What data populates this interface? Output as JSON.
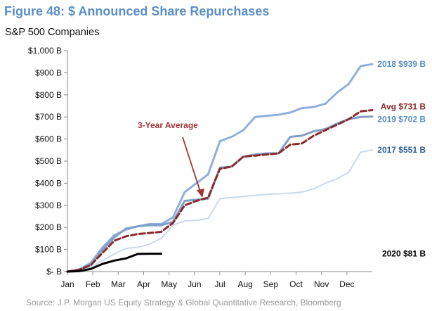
{
  "title": "Figure 48: $ Announced Share Repurchases",
  "subtitle": "S&P 500 Companies",
  "source": "Source: J.P. Morgan US Equity Strategy & Global Quantitative Research, Bloomberg",
  "chart_data": {
    "type": "line",
    "unit": "$B",
    "x_ticks": [
      "Jan",
      "Feb",
      "Mar",
      "Apr",
      "May",
      "Jun",
      "Jul",
      "Aug",
      "Sep",
      "Oct",
      "Nov",
      "Dec"
    ],
    "y_ticks": [
      "$- B",
      "$100 B",
      "$200 B",
      "$300 B",
      "$400 B",
      "$500 B",
      "$600 B",
      "$700 B",
      "$800 B",
      "$900 B",
      "$1,000 B"
    ],
    "ylim": [
      0,
      1000
    ],
    "xlim": [
      0,
      52
    ],
    "grid": false,
    "annotation": "3-Year Average",
    "series": [
      {
        "name": "2017",
        "end_label": "2017  $551 B",
        "color": "#c8d9ed",
        "x": [
          0,
          2,
          4,
          6,
          8,
          10,
          12,
          14,
          16,
          18,
          20,
          22,
          24,
          26,
          28,
          30,
          32,
          34,
          36,
          38,
          40,
          42,
          44,
          46,
          48,
          50,
          52
        ],
        "values": [
          0,
          5,
          20,
          50,
          80,
          105,
          110,
          125,
          150,
          210,
          230,
          232,
          240,
          330,
          335,
          340,
          345,
          350,
          352,
          355,
          360,
          375,
          400,
          420,
          450,
          540,
          551
        ]
      },
      {
        "name": "2018",
        "end_label": "2018  $939 B",
        "color": "#8eb0dc",
        "x": [
          0,
          2,
          4,
          6,
          8,
          10,
          12,
          14,
          16,
          18,
          20,
          22,
          24,
          26,
          28,
          30,
          32,
          34,
          36,
          38,
          40,
          42,
          44,
          46,
          48,
          50,
          52
        ],
        "values": [
          0,
          10,
          40,
          110,
          165,
          190,
          205,
          215,
          215,
          245,
          360,
          400,
          440,
          590,
          610,
          640,
          700,
          705,
          710,
          720,
          740,
          745,
          760,
          810,
          850,
          930,
          939
        ]
      },
      {
        "name": "2019",
        "end_label": "2019  $702 B",
        "color": "#7f9fc9",
        "x": [
          0,
          2,
          4,
          6,
          8,
          10,
          12,
          14,
          16,
          18,
          20,
          22,
          24,
          26,
          28,
          30,
          32,
          34,
          36,
          38,
          40,
          42,
          44,
          46,
          48,
          50,
          52
        ],
        "values": [
          0,
          10,
          30,
          100,
          155,
          195,
          205,
          210,
          210,
          225,
          320,
          325,
          330,
          470,
          475,
          520,
          530,
          535,
          535,
          610,
          615,
          635,
          645,
          670,
          690,
          700,
          702
        ]
      },
      {
        "name": "Avg",
        "end_label": "Avg  $731 B",
        "color": "#8b2a2a",
        "x": [
          0,
          2,
          4,
          6,
          8,
          10,
          12,
          14,
          16,
          18,
          20,
          22,
          24,
          26,
          28,
          30,
          32,
          34,
          36,
          38,
          40,
          42,
          44,
          46,
          48,
          50,
          52
        ],
        "values": [
          0,
          8,
          30,
          85,
          140,
          160,
          170,
          175,
          180,
          220,
          300,
          320,
          335,
          465,
          475,
          520,
          525,
          530,
          535,
          575,
          580,
          615,
          640,
          665,
          690,
          725,
          731
        ]
      },
      {
        "name": "2020",
        "end_label": "2020  $81 B",
        "color": "#000000",
        "x": [
          0,
          2,
          4,
          6,
          8,
          10,
          12,
          14,
          16
        ],
        "values": [
          0,
          2,
          12,
          35,
          50,
          60,
          80,
          81,
          81
        ]
      }
    ]
  }
}
